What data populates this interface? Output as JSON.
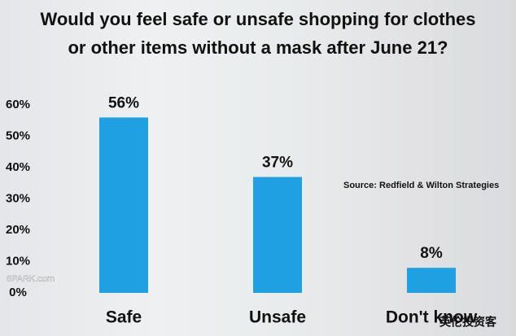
{
  "chart_data": {
    "type": "bar",
    "title": "Would you feel safe or unsafe shopping for clothes or other items without a mask after June 21?",
    "categories": [
      "Safe",
      "Unsafe",
      "Don't know"
    ],
    "values": [
      56,
      37,
      8
    ],
    "value_labels": [
      "56%",
      "37%",
      "8%"
    ],
    "color": "#1fa0e3",
    "ylim": [
      0,
      60
    ],
    "yticks": [
      {
        "value": 0,
        "label": "0%"
      },
      {
        "value": 10,
        "label": "10%"
      },
      {
        "value": 20,
        "label": "20%"
      },
      {
        "value": 30,
        "label": "30%"
      },
      {
        "value": 40,
        "label": "40%"
      },
      {
        "value": 50,
        "label": "50%"
      },
      {
        "value": 60,
        "label": "60%"
      }
    ],
    "grid": false,
    "annotation": "Source: Redfield & Wilton Strategies",
    "watermarks": [
      "6PARK.com",
      "英伦投资客"
    ]
  }
}
